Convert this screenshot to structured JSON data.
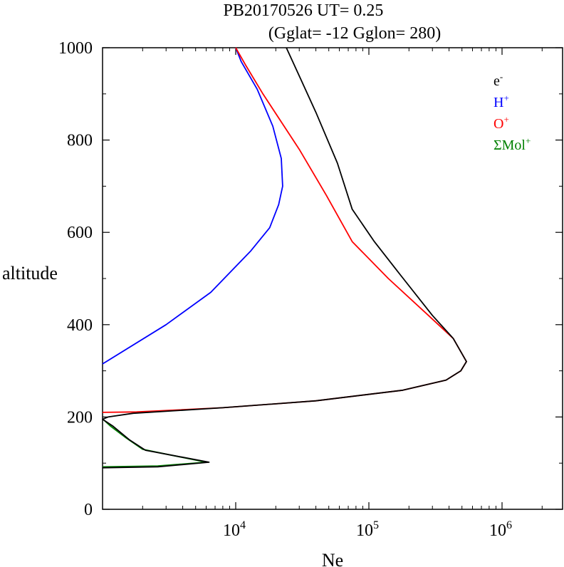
{
  "title": {
    "line1": "PB20170526   UT=  0.25",
    "line2": "(Gglat= -12   Gglon=  280)"
  },
  "colors": {
    "e": "#000000",
    "H": "#0000ff",
    "O": "#ff0000",
    "Mol": "#008000"
  },
  "chart_data": {
    "type": "line",
    "title": "PB20170526   UT=  0.25   (Gglat= -12   Gglon=  280)",
    "xlabel": "Ne",
    "ylabel": "altitude",
    "x_scale": "log",
    "xlim": [
      1000,
      3000000
    ],
    "ylim": [
      0,
      1000
    ],
    "x_ticks": [
      {
        "value": 10000,
        "base": "10",
        "exp": "4"
      },
      {
        "value": 100000,
        "base": "10",
        "exp": "5"
      },
      {
        "value": 1000000,
        "base": "10",
        "exp": "6"
      }
    ],
    "y_ticks": [
      0,
      200,
      400,
      600,
      800,
      1000
    ],
    "legend_position": "top-right",
    "series": [
      {
        "name": "e-",
        "legend_base": "e",
        "legend_sup": "-",
        "color": "#000000",
        "points": [
          [
            1000,
            90
          ],
          [
            2600,
            92
          ],
          [
            6300,
            102
          ],
          [
            2100,
            128
          ],
          [
            1600,
            150
          ],
          [
            1200,
            180
          ],
          [
            1000,
            195
          ],
          [
            1100,
            200
          ],
          [
            1700,
            208
          ],
          [
            8000,
            220
          ],
          [
            40000,
            235
          ],
          [
            180000,
            258
          ],
          [
            380000,
            280
          ],
          [
            490000,
            300
          ],
          [
            540000,
            320
          ],
          [
            430000,
            370
          ],
          [
            300000,
            420
          ],
          [
            170000,
            510
          ],
          [
            110000,
            580
          ],
          [
            75000,
            650
          ],
          [
            58000,
            750
          ],
          [
            40000,
            860
          ],
          [
            31000,
            930
          ],
          [
            24000,
            1000
          ]
        ]
      },
      {
        "name": "H+",
        "legend_base": "H",
        "legend_sup": "+",
        "color": "#0000ff",
        "points": [
          [
            1000,
            315
          ],
          [
            3000,
            400
          ],
          [
            6500,
            470
          ],
          [
            13000,
            560
          ],
          [
            18000,
            610
          ],
          [
            21000,
            660
          ],
          [
            22500,
            700
          ],
          [
            22000,
            760
          ],
          [
            19000,
            830
          ],
          [
            14500,
            910
          ],
          [
            11000,
            970
          ],
          [
            10000,
            1000
          ]
        ]
      },
      {
        "name": "O+",
        "legend_base": "O",
        "legend_sup": "+",
        "color": "#ff0000",
        "points": [
          [
            1000,
            210
          ],
          [
            1800,
            211
          ],
          [
            8000,
            220
          ],
          [
            40000,
            235
          ],
          [
            180000,
            258
          ],
          [
            380000,
            280
          ],
          [
            490000,
            300
          ],
          [
            540000,
            320
          ],
          [
            430000,
            370
          ],
          [
            280000,
            420
          ],
          [
            140000,
            500
          ],
          [
            75000,
            580
          ],
          [
            48000,
            680
          ],
          [
            30000,
            780
          ],
          [
            16000,
            900
          ],
          [
            12000,
            960
          ],
          [
            10000,
            1000
          ]
        ]
      },
      {
        "name": "ΣMol+",
        "legend_base": "ΣMol",
        "legend_sup": "+",
        "color": "#008000",
        "points": [
          [
            1000,
            92
          ],
          [
            2600,
            94
          ],
          [
            6000,
            102
          ],
          [
            2000,
            130
          ],
          [
            1500,
            155
          ],
          [
            1150,
            180
          ],
          [
            1000,
            196
          ]
        ]
      }
    ]
  }
}
